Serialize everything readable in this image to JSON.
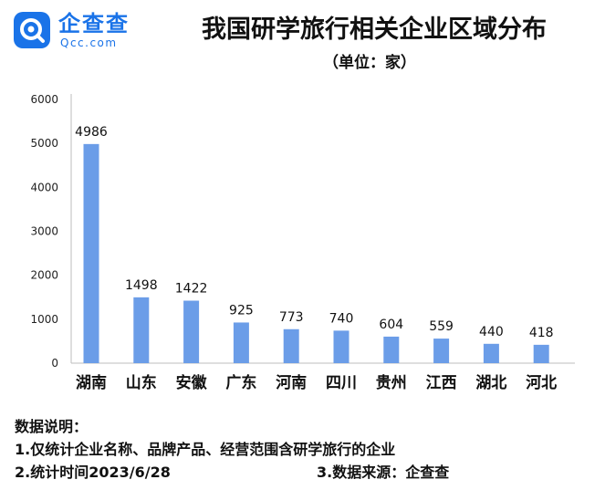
{
  "brand": {
    "name_cn": "企查查",
    "name_en": "Qcc.com",
    "color": "#1a73e8"
  },
  "title": "我国研学旅行相关企业区域分布",
  "subtitle": "（单位：家）",
  "chart_data": {
    "type": "bar",
    "categories": [
      "湖南",
      "山东",
      "安徽",
      "广东",
      "河南",
      "四川",
      "贵州",
      "江西",
      "湖北",
      "河北"
    ],
    "values": [
      4986,
      1498,
      1422,
      925,
      773,
      740,
      604,
      559,
      440,
      418
    ],
    "yticks": [
      "0",
      "1000",
      "2000",
      "3000",
      "4000",
      "5000",
      "6000"
    ],
    "ylim": [
      0,
      6000
    ],
    "bar_color": "#6b9de8",
    "grid": false,
    "legend": "none"
  },
  "notes": {
    "heading": "数据说明：",
    "line1": "1.仅统计企业名称、品牌产品、经营范围含研学旅行的企业",
    "line2": "2.统计时间2023/6/28",
    "line3": "3.数据来源：企查查"
  }
}
